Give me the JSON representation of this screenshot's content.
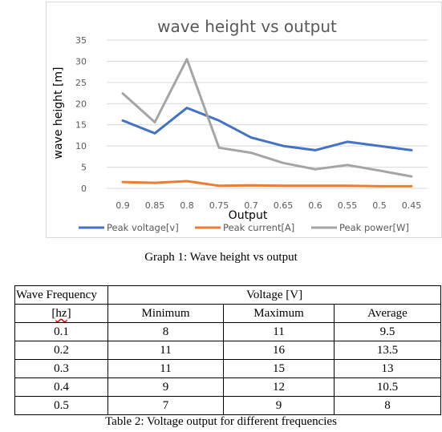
{
  "chart_data": {
    "type": "line",
    "title": "wave height vs output",
    "xlabel": "Output",
    "ylabel": "wave height [m]",
    "categories": [
      "0.9",
      "0.85",
      "0.8",
      "0.75",
      "0.7",
      "0.65",
      "0.6",
      "0.55",
      "0.5",
      "0.45"
    ],
    "ylim": [
      0,
      35
    ],
    "yticks": [
      0,
      5,
      10,
      15,
      20,
      25,
      30,
      35
    ],
    "grid": true,
    "legend_position": "bottom",
    "series": [
      {
        "name": "Peak voltage[v]",
        "color": "#4472c4",
        "values": [
          16,
          13,
          19,
          16,
          12,
          10,
          9,
          11,
          10,
          9
        ]
      },
      {
        "name": "Peak current[A]",
        "color": "#ed7d31",
        "values": [
          1.5,
          1.3,
          1.7,
          0.6,
          0.7,
          0.6,
          0.6,
          0.6,
          0.5,
          0.5
        ]
      },
      {
        "name": "Peak power[W]",
        "color": "#a5a5a5",
        "values": [
          22.4,
          15.6,
          30.5,
          9.6,
          8.4,
          6,
          4.5,
          5.5,
          4.2,
          2.8
        ]
      }
    ]
  },
  "graph_caption": "Graph 1: Wave height vs output",
  "table": {
    "header_freq_line1": "Wave Frequency",
    "header_freq_line2_pre": "[",
    "header_freq_line2_hz": "hz",
    "header_freq_line2_post": "]",
    "header_voltage": "Voltage [V]",
    "col_min": "Minimum",
    "col_max": "Maximum",
    "col_avg": "Average",
    "rows": [
      {
        "freq": "0.1",
        "min": "8",
        "max": "11",
        "avg": "9.5"
      },
      {
        "freq": "0.2",
        "min": "11",
        "max": "16",
        "avg": "13.5"
      },
      {
        "freq": "0.3",
        "min": "11",
        "max": "15",
        "avg": "13"
      },
      {
        "freq": "0.4",
        "min": "9",
        "max": "12",
        "avg": "10.5"
      },
      {
        "freq": "0.5",
        "min": "7",
        "max": "9",
        "avg": "8"
      }
    ]
  },
  "table_caption": "Table 2: Voltage output for different frequencies"
}
